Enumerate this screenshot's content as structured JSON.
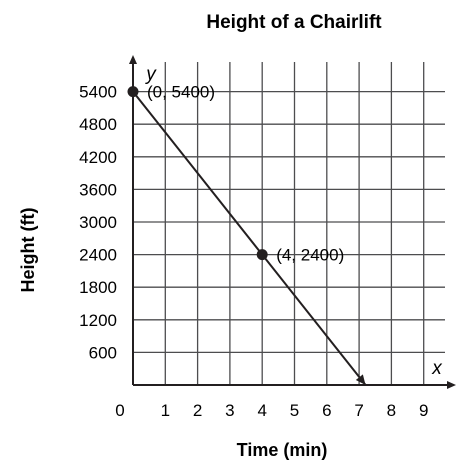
{
  "chart_data": {
    "type": "line",
    "title": "Height of a Chairlift",
    "xlabel": "Time (min)",
    "ylabel": "Height (ft)",
    "x_axis_letter": "x",
    "y_axis_letter": "y",
    "origin_label": "0",
    "xlim": [
      0,
      9.6
    ],
    "ylim": [
      0,
      5700
    ],
    "x_ticks": [
      1,
      2,
      3,
      4,
      5,
      6,
      7,
      8,
      9
    ],
    "y_ticks": [
      600,
      1200,
      1800,
      2400,
      3000,
      3600,
      4200,
      4800,
      5400
    ],
    "grid": true,
    "series": [
      {
        "x": [
          0,
          7.2
        ],
        "y": [
          5400,
          0
        ]
      }
    ],
    "points": [
      {
        "x": 0,
        "y": 5400,
        "label": "(0, 5400)"
      },
      {
        "x": 4,
        "y": 2400,
        "label": "(4, 2400)"
      }
    ]
  }
}
